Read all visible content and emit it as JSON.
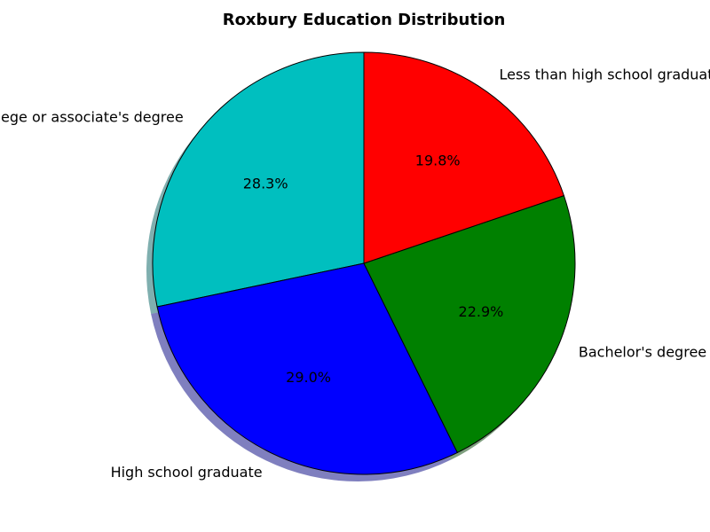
{
  "chart_data": {
    "type": "pie",
    "title": "Roxbury Education Distribution",
    "slices": [
      {
        "label": "Some college or associate's degree",
        "percent": 28.3,
        "percent_label": "28.3%",
        "color": "#00bfbf"
      },
      {
        "label": "High school graduate",
        "percent": 29.0,
        "percent_label": "29.0%",
        "color": "#0000ff"
      },
      {
        "label": "Bachelor's degree or higher",
        "percent": 22.9,
        "percent_label": "22.9%",
        "color": "#008000"
      },
      {
        "label": "Less than high school graduate",
        "percent": 19.8,
        "percent_label": "19.8%",
        "color": "#ff0000"
      }
    ],
    "start_angle_deg": 90,
    "direction": "counterclockwise",
    "shadow": true,
    "legend": "none"
  }
}
